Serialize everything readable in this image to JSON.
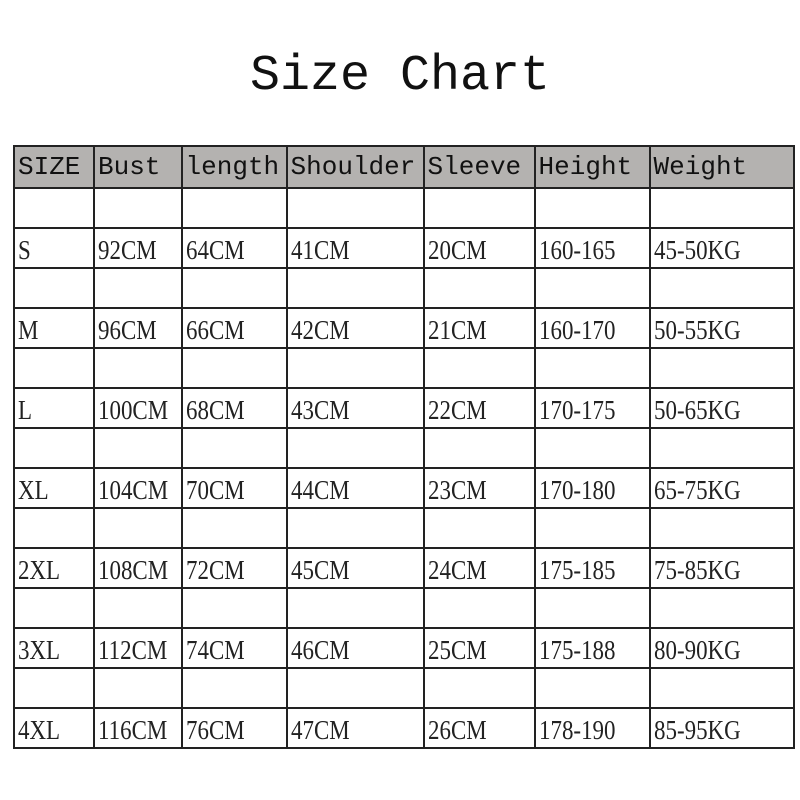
{
  "title": "Size Chart",
  "header_color": "#b4b2b0",
  "columns": [
    "SIZE",
    "Bust",
    "length",
    "Shoulder",
    "Sleeve",
    "Height",
    "Weight"
  ],
  "rows": [
    [
      "S",
      "92CM",
      "64CM",
      "41CM",
      "20CM",
      "160-165",
      "45-50KG"
    ],
    [
      "M",
      "96CM",
      "66CM",
      "42CM",
      "21CM",
      "160-170",
      "50-55KG"
    ],
    [
      "L",
      "100CM",
      "68CM",
      "43CM",
      "22CM",
      "170-175",
      "50-65KG"
    ],
    [
      "XL",
      "104CM",
      "70CM",
      "44CM",
      "23CM",
      "170-180",
      "65-75KG"
    ],
    [
      "2XL",
      "108CM",
      "72CM",
      "45CM",
      "24CM",
      "175-185",
      "75-85KG"
    ],
    [
      "3XL",
      "112CM",
      "74CM",
      "46CM",
      "25CM",
      "175-188",
      "80-90KG"
    ],
    [
      "4XL",
      "116CM",
      "76CM",
      "47CM",
      "26CM",
      "178-190",
      "85-95KG"
    ]
  ]
}
